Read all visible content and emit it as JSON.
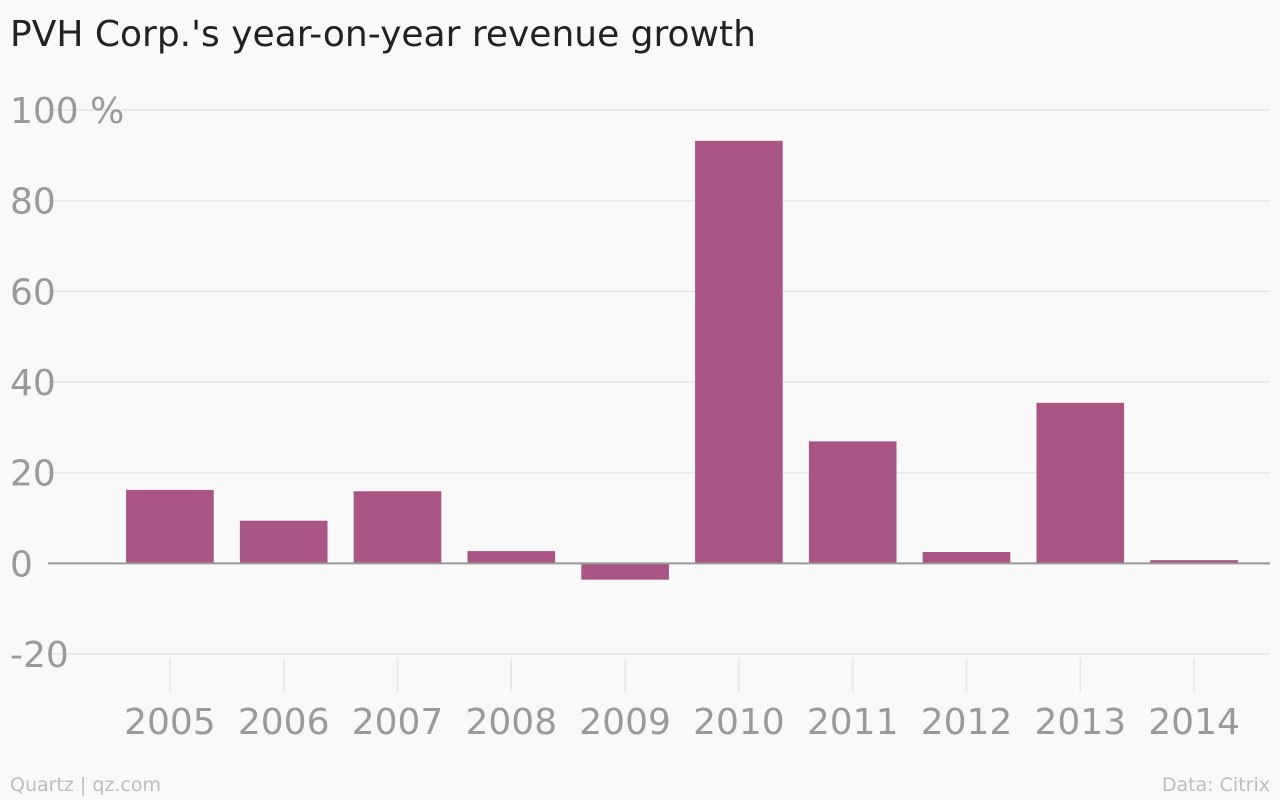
{
  "title": "PVH Corp.'s year-on-year revenue growth",
  "footer": {
    "source_left": "Quartz | qz.com",
    "source_right": "Data: Citrix"
  },
  "colors": {
    "bar": "#a85584",
    "grid": "#e6e6e6",
    "zero_line": "#999999",
    "tick_text": "#9a9a9a",
    "background": "#f9f9f9"
  },
  "chart_data": {
    "type": "bar",
    "title": "PVH Corp.'s year-on-year revenue growth",
    "xlabel": "",
    "ylabel": "",
    "categories": [
      "2005",
      "2006",
      "2007",
      "2008",
      "2009",
      "2010",
      "2011",
      "2012",
      "2013",
      "2014"
    ],
    "values": [
      16.2,
      9.4,
      15.9,
      2.7,
      -3.6,
      93.2,
      26.9,
      2.5,
      35.4,
      0.7
    ],
    "ylim": [
      -20,
      100
    ],
    "yticks": [
      -20,
      0,
      20,
      40,
      60,
      80,
      100
    ],
    "ytick_labels": [
      "-20",
      "0",
      "20",
      "40",
      "60",
      "80",
      "100 %"
    ],
    "grid": true,
    "legend": "none"
  }
}
